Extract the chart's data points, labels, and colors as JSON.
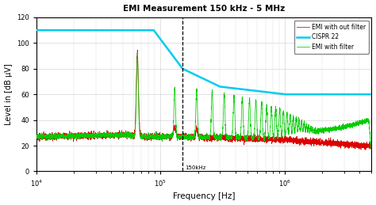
{
  "title": "EMI Measurement 150 kHz - 5 MHz",
  "xlabel": "Frequency [Hz]",
  "ylabel": "Level in [dB μV]",
  "xlim": [
    10000,
    5000000
  ],
  "ylim": [
    0,
    120
  ],
  "yticks": [
    0,
    20,
    40,
    60,
    80,
    100,
    120
  ],
  "dashed_line_x": 150000,
  "dashed_label": "150kHz",
  "legend": [
    "EMI with out filter",
    "CISPR 22",
    "EMI with filter"
  ],
  "colors": {
    "emi_no_filter": "#dd0000",
    "cispr": "#00ccee",
    "emi_filter": "#00cc00"
  },
  "background": "#ffffff",
  "cispr_points_x": [
    10000,
    88000,
    88000,
    150000,
    300000,
    1000000,
    5000000
  ],
  "cispr_points_y": [
    110,
    110,
    110,
    80,
    66,
    60,
    60
  ],
  "spike_freq": 65000,
  "spike_amp": 65,
  "baseline_no_filter": 27,
  "baseline_filter": 27
}
